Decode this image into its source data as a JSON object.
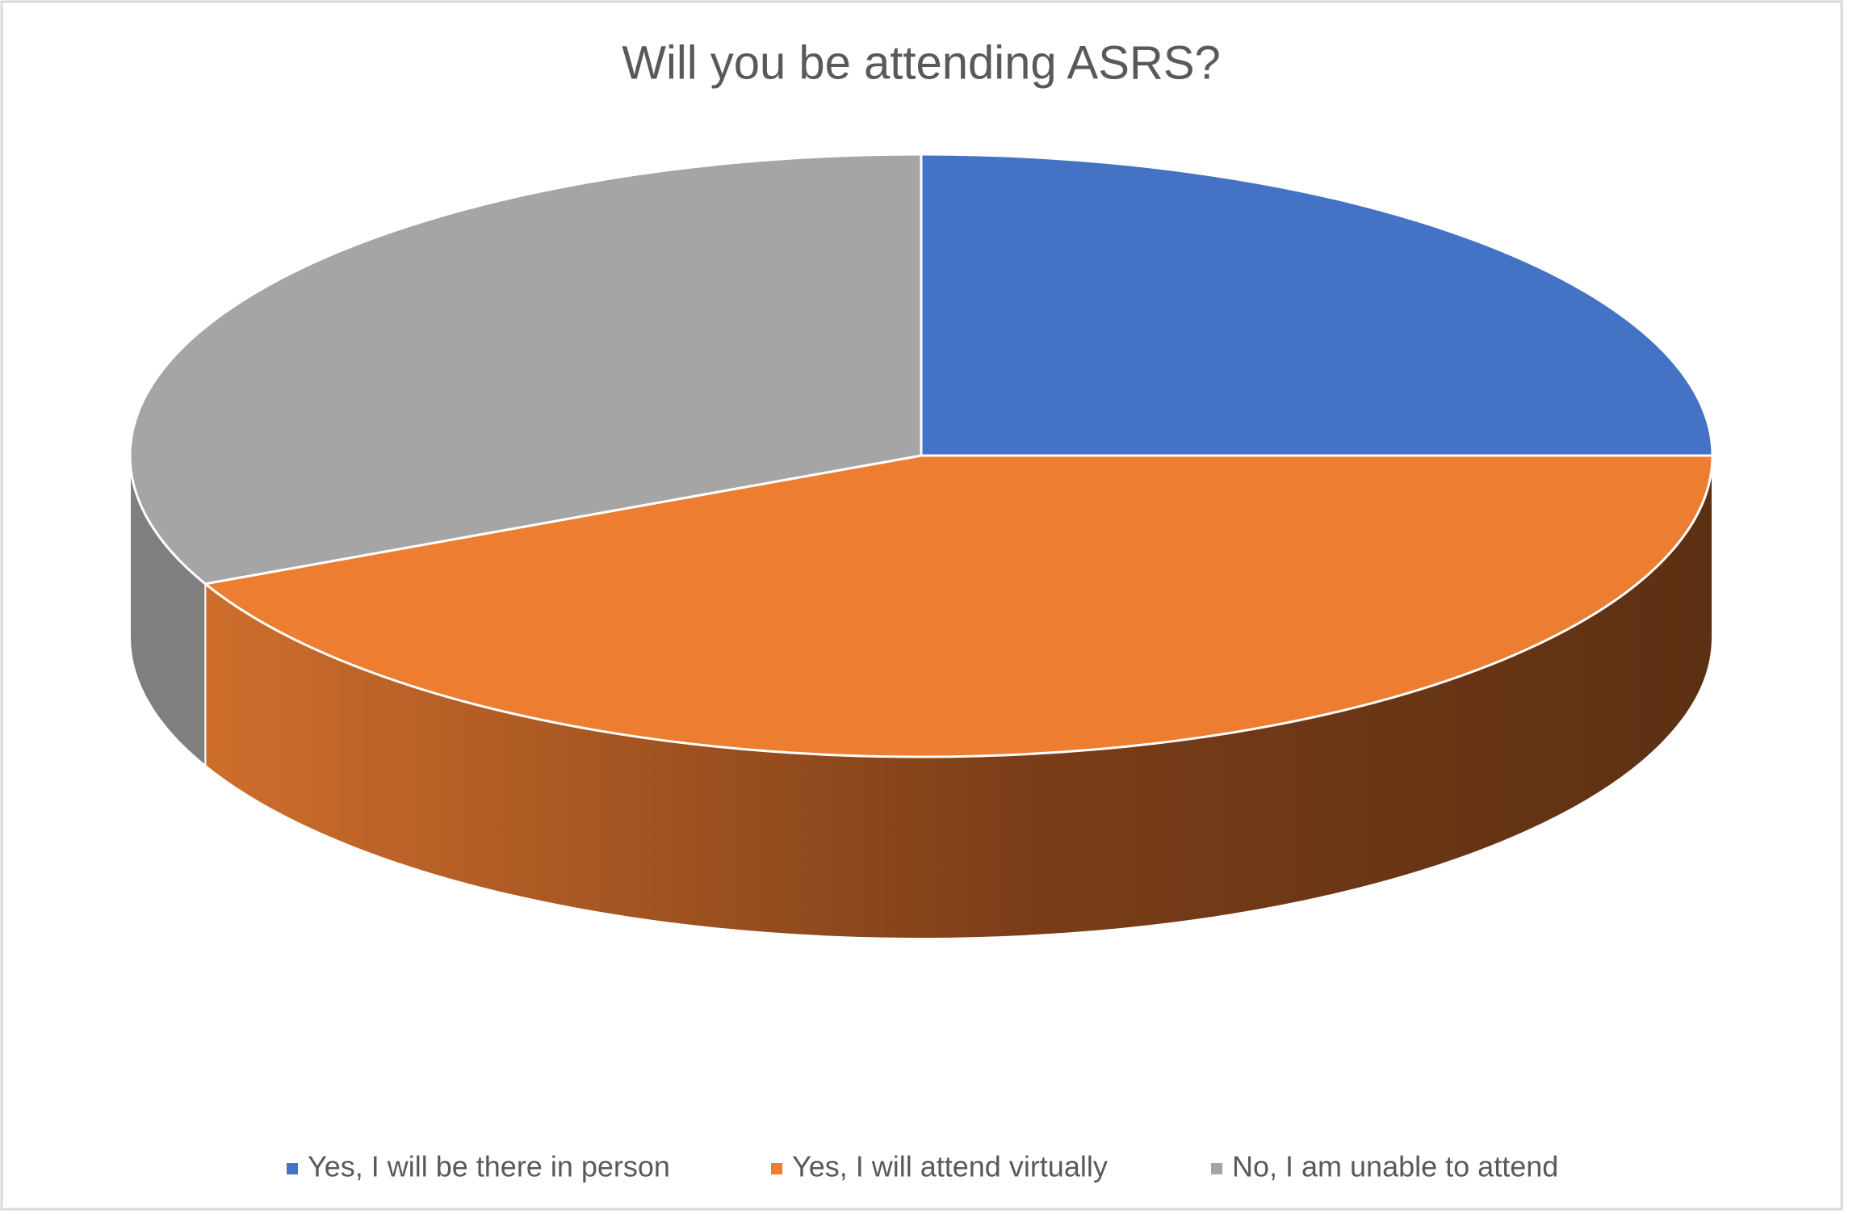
{
  "chart_data": {
    "type": "pie",
    "title": "Will you be attending ASRS?",
    "categories": [
      "Yes, I will be there in person",
      "Yes, I will attend virtually",
      "No, I am unable to attend"
    ],
    "values": [
      25,
      43,
      32
    ],
    "colors": [
      "#4472c4",
      "#ed7d31",
      "#a5a5a5"
    ],
    "legend": "bottom"
  }
}
